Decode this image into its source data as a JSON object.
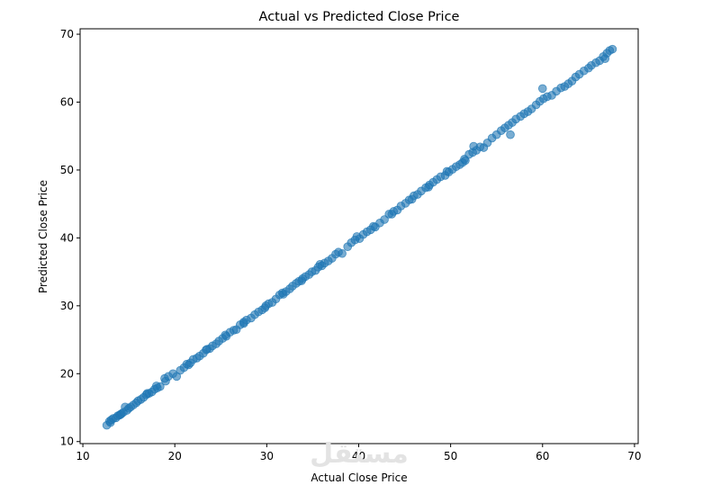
{
  "chart_data": {
    "type": "scatter",
    "title": "Actual vs Predicted Close Price",
    "xlabel": "Actual Close Price",
    "ylabel": "Predicted Close Price",
    "xlim": [
      9.7,
      70.4
    ],
    "ylim": [
      9.7,
      70.8
    ],
    "xticks": [
      10,
      20,
      30,
      40,
      50,
      60,
      70
    ],
    "yticks": [
      10,
      20,
      30,
      40,
      50,
      60,
      70
    ],
    "grid": false,
    "marker_color": "#1f77b4",
    "marker_alpha": 0.6,
    "watermark": "مستقل",
    "points": [
      [
        12.6,
        12.4
      ],
      [
        12.9,
        13.0
      ],
      [
        13.1,
        13.2
      ],
      [
        13.3,
        13.4
      ],
      [
        13.6,
        13.5
      ],
      [
        13.8,
        13.8
      ],
      [
        14.0,
        13.9
      ],
      [
        14.2,
        14.1
      ],
      [
        14.4,
        14.3
      ],
      [
        14.1,
        14.0
      ],
      [
        14.6,
        15.1
      ],
      [
        14.8,
        14.6
      ],
      [
        15.2,
        15.1
      ],
      [
        15.5,
        15.4
      ],
      [
        15.8,
        15.7
      ],
      [
        16.0,
        16.0
      ],
      [
        16.3,
        16.2
      ],
      [
        16.6,
        16.5
      ],
      [
        16.9,
        16.9
      ],
      [
        17.2,
        17.1
      ],
      [
        17.5,
        17.3
      ],
      [
        17.8,
        17.7
      ],
      [
        18.1,
        17.9
      ],
      [
        18.4,
        18.1
      ],
      [
        18.0,
        18.2
      ],
      [
        18.9,
        19.3
      ],
      [
        19.3,
        19.6
      ],
      [
        19.8,
        20.0
      ],
      [
        20.2,
        19.6
      ],
      [
        20.6,
        20.5
      ],
      [
        21.0,
        20.9
      ],
      [
        21.3,
        21.4
      ],
      [
        21.7,
        21.6
      ],
      [
        22.0,
        22.1
      ],
      [
        22.4,
        22.3
      ],
      [
        22.7,
        22.6
      ],
      [
        23.1,
        23.0
      ],
      [
        23.4,
        23.5
      ],
      [
        23.8,
        23.7
      ],
      [
        24.1,
        24.1
      ],
      [
        24.5,
        24.4
      ],
      [
        24.8,
        24.8
      ],
      [
        25.2,
        25.2
      ],
      [
        25.6,
        25.5
      ],
      [
        26.0,
        26.1
      ],
      [
        26.4,
        26.4
      ],
      [
        26.7,
        26.5
      ],
      [
        27.1,
        27.2
      ],
      [
        27.5,
        27.4
      ],
      [
        27.8,
        27.9
      ],
      [
        28.3,
        28.2
      ],
      [
        28.7,
        28.7
      ],
      [
        29.1,
        29.1
      ],
      [
        29.5,
        29.4
      ],
      [
        29.9,
        30.0
      ],
      [
        30.2,
        30.3
      ],
      [
        30.6,
        30.5
      ],
      [
        31.0,
        31.0
      ],
      [
        31.4,
        31.6
      ],
      [
        31.7,
        31.9
      ],
      [
        32.1,
        32.1
      ],
      [
        32.5,
        32.5
      ],
      [
        32.8,
        32.9
      ],
      [
        33.2,
        33.3
      ],
      [
        33.5,
        33.6
      ],
      [
        33.9,
        34.0
      ],
      [
        34.2,
        34.3
      ],
      [
        34.6,
        34.6
      ],
      [
        34.9,
        35.0
      ],
      [
        35.3,
        35.2
      ],
      [
        35.6,
        35.7
      ],
      [
        36.0,
        35.9
      ],
      [
        36.3,
        36.3
      ],
      [
        36.7,
        36.6
      ],
      [
        37.1,
        37.0
      ],
      [
        37.5,
        37.6
      ],
      [
        38.2,
        37.7
      ],
      [
        38.8,
        38.7
      ],
      [
        39.2,
        39.3
      ],
      [
        39.8,
        40.2
      ],
      [
        40.1,
        39.9
      ],
      [
        40.5,
        40.5
      ],
      [
        40.9,
        40.9
      ],
      [
        41.3,
        41.2
      ],
      [
        41.8,
        41.6
      ],
      [
        42.3,
        42.2
      ],
      [
        42.8,
        42.7
      ],
      [
        43.3,
        43.5
      ],
      [
        43.8,
        43.9
      ],
      [
        44.2,
        44.1
      ],
      [
        44.6,
        44.7
      ],
      [
        45.1,
        45.1
      ],
      [
        45.5,
        45.6
      ],
      [
        46.0,
        46.2
      ],
      [
        46.4,
        46.4
      ],
      [
        46.8,
        46.9
      ],
      [
        47.3,
        47.4
      ],
      [
        47.7,
        47.8
      ],
      [
        48.1,
        48.2
      ],
      [
        48.5,
        48.6
      ],
      [
        48.9,
        49.0
      ],
      [
        49.4,
        49.2
      ],
      [
        49.8,
        49.7
      ],
      [
        50.2,
        50.1
      ],
      [
        50.6,
        50.5
      ],
      [
        51.0,
        50.8
      ],
      [
        51.3,
        51.1
      ],
      [
        51.6,
        51.4
      ],
      [
        52.0,
        52.3
      ],
      [
        52.4,
        52.6
      ],
      [
        52.8,
        52.9
      ],
      [
        53.2,
        53.4
      ],
      [
        53.6,
        53.3
      ],
      [
        54.0,
        54.0
      ],
      [
        54.5,
        54.7
      ],
      [
        55.0,
        55.2
      ],
      [
        55.5,
        55.8
      ],
      [
        55.9,
        56.2
      ],
      [
        56.3,
        56.6
      ],
      [
        56.7,
        57.0
      ],
      [
        56.5,
        55.2
      ],
      [
        57.1,
        57.5
      ],
      [
        57.6,
        57.9
      ],
      [
        58.0,
        58.3
      ],
      [
        58.4,
        58.6
      ],
      [
        58.8,
        59.0
      ],
      [
        59.3,
        59.6
      ],
      [
        59.7,
        60.1
      ],
      [
        60.1,
        60.5
      ],
      [
        60.5,
        60.8
      ],
      [
        61.0,
        61.0
      ],
      [
        61.5,
        61.6
      ],
      [
        62.0,
        62.1
      ],
      [
        62.4,
        62.3
      ],
      [
        62.8,
        62.7
      ],
      [
        63.2,
        63.1
      ],
      [
        63.6,
        63.7
      ],
      [
        64.0,
        64.1
      ],
      [
        64.5,
        64.6
      ],
      [
        65.0,
        65.0
      ],
      [
        65.3,
        65.4
      ],
      [
        65.8,
        65.8
      ],
      [
        66.2,
        66.1
      ],
      [
        66.6,
        66.7
      ],
      [
        67.0,
        67.2
      ],
      [
        67.3,
        67.6
      ],
      [
        67.6,
        67.8
      ],
      [
        66.8,
        66.4
      ],
      [
        60.0,
        62.0
      ],
      [
        52.5,
        53.5
      ],
      [
        13.0,
        12.8
      ],
      [
        15.0,
        14.9
      ],
      [
        17.0,
        17.1
      ],
      [
        19.0,
        18.9
      ],
      [
        21.5,
        21.3
      ],
      [
        23.5,
        23.6
      ],
      [
        25.5,
        25.7
      ],
      [
        27.5,
        27.6
      ],
      [
        29.8,
        29.7
      ],
      [
        31.8,
        31.7
      ],
      [
        33.8,
        33.7
      ],
      [
        35.8,
        36.1
      ],
      [
        37.8,
        37.9
      ],
      [
        39.6,
        39.7
      ],
      [
        41.6,
        41.7
      ],
      [
        43.6,
        43.5
      ],
      [
        45.8,
        45.7
      ],
      [
        47.6,
        47.5
      ],
      [
        49.6,
        49.8
      ],
      [
        51.5,
        51.6
      ]
    ]
  }
}
